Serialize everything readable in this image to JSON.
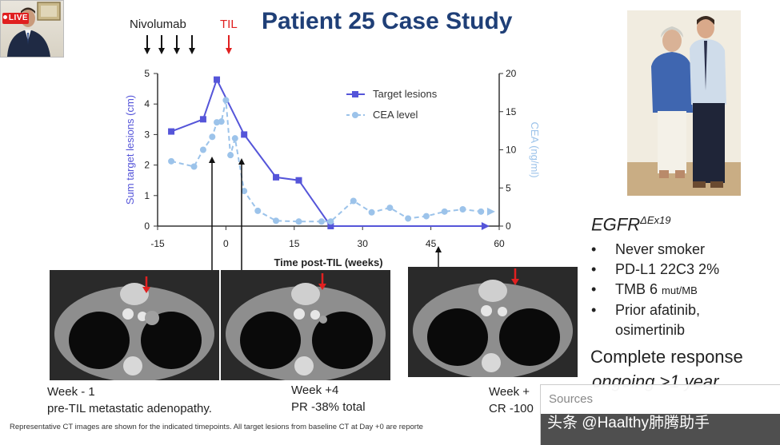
{
  "stream": {
    "live_badge": "LIVE"
  },
  "slide": {
    "title": "Patient 25 Case Study",
    "drug_label": "Nivolumab",
    "til_label": "TIL",
    "profile": {
      "egfr": "EGFR",
      "egfr_sup": "ΔEx19",
      "bullets": [
        "Never smoker",
        "PD-L1 22C3 2%",
        "TMB 6 ",
        "Prior afatinib,"
      ],
      "tmb_unit": "mut/MB",
      "bullet_cont": "osimertinib",
      "response_line1": "Complete response",
      "response_line2": "ongoing >1 year"
    },
    "scans": [
      {
        "line1": "Week - 1",
        "line2": "pre-TIL metastatic adenopathy."
      },
      {
        "line1": "Week +4",
        "line2": "PR -38% total"
      },
      {
        "line1": "Week +",
        "line2": "CR -100"
      }
    ],
    "footnote": "Representative CT images are shown for the indicated timepoints. All target lesions from baseline CT at Day +0 are reporte"
  },
  "overlay": {
    "sources_label": "Sources",
    "watermark": "头条 @Haalthy肺腾助手"
  },
  "colors": {
    "title": "#1f3f77",
    "target": "#5555d9",
    "cea": "#9cc3ea",
    "til_arrow": "#e02020"
  },
  "chart_data": {
    "type": "line",
    "xlabel": "Time post-TIL (weeks)",
    "ylabel": "Sum target lesions (cm)",
    "y2label": "CEA (ng/ml)",
    "xlim": [
      -15,
      60
    ],
    "ylim": [
      0,
      5
    ],
    "y2lim": [
      0,
      20
    ],
    "xticks": [
      -15,
      0,
      15,
      30,
      45,
      60
    ],
    "yticks": [
      0,
      1,
      2,
      3,
      4,
      5
    ],
    "y2ticks": [
      0,
      5,
      10,
      15,
      20
    ],
    "series": [
      {
        "name": "Target lesions",
        "axis": "left",
        "x": [
          -12,
          -5,
          -2,
          4,
          11,
          16,
          23,
          57
        ],
        "values": [
          3.1,
          3.5,
          4.8,
          3.0,
          1.6,
          1.5,
          0,
          0
        ]
      },
      {
        "name": "CEA level",
        "axis": "right",
        "x": [
          -12,
          -7,
          -5,
          -3,
          -2,
          -1,
          0,
          1,
          2,
          4,
          7,
          11,
          16,
          21,
          23,
          28,
          32,
          36,
          40,
          44,
          48,
          52,
          56
        ],
        "values": [
          8.5,
          7.8,
          10,
          11.7,
          13.6,
          13.7,
          16.5,
          9.3,
          11.5,
          4.6,
          2,
          0.7,
          0.6,
          0.6,
          0.6,
          3.3,
          1.8,
          2.4,
          1,
          1.3,
          1.9,
          2.2,
          1.9
        ]
      }
    ],
    "dosing": {
      "nivolumab_weeks": [
        -12,
        -9,
        -6,
        -3
      ],
      "til_week": 0
    }
  }
}
